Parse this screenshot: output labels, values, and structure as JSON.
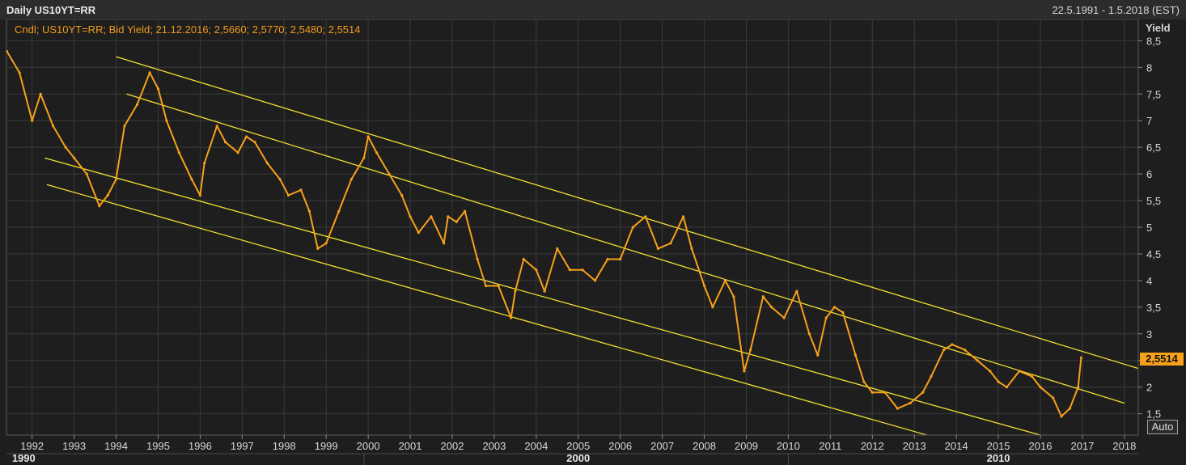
{
  "header": {
    "title": "Daily US10YT=RR",
    "date_range": "22.5.1991 - 1.5.2018 (EST)"
  },
  "legend": {
    "text": "Cndl; US10YT=RR; Bid Yield; 21.12.2016; 2,5660; 2,5770; 2,5480; 2,5514"
  },
  "controls": {
    "auto_label": "Auto"
  },
  "last_value_label": "2,5514",
  "colors": {
    "background": "#1e1e1e",
    "series": "#f7a11a",
    "channel": "#f0e030",
    "grid": "#3a3a3a"
  },
  "chart_data": {
    "type": "line",
    "title": "Daily US10YT=RR",
    "ylabel": "Yield",
    "xlim": [
      1991.39,
      2018.33
    ],
    "ylim": [
      1.1,
      8.9
    ],
    "grid": true,
    "y_ticks": [
      "8,5",
      "8",
      "7,5",
      "7",
      "6,5",
      "6",
      "5,5",
      "5",
      "4,5",
      "4",
      "3,5",
      "3",
      "2,5",
      "2",
      "1,5"
    ],
    "x_ticks": [
      "1992",
      "1993",
      "1994",
      "1995",
      "1996",
      "1997",
      "1998",
      "1999",
      "2000",
      "2001",
      "2002",
      "2003",
      "2004",
      "2005",
      "2006",
      "2007",
      "2008",
      "2009",
      "2010",
      "2011",
      "2012",
      "2013",
      "2014",
      "2015",
      "2016",
      "2017",
      "2018"
    ],
    "decade_labels": [
      "1990",
      "2000",
      "2010"
    ],
    "last_value": 2.5514,
    "series": [
      {
        "name": "US10YT=RR",
        "x": [
          1991.4,
          1991.7,
          1992.0,
          1992.2,
          1992.5,
          1992.8,
          1993.0,
          1993.3,
          1993.6,
          1993.8,
          1994.0,
          1994.2,
          1994.5,
          1994.8,
          1995.0,
          1995.2,
          1995.5,
          1995.8,
          1996.0,
          1996.1,
          1996.4,
          1996.6,
          1996.9,
          1997.1,
          1997.3,
          1997.6,
          1997.9,
          1998.1,
          1998.4,
          1998.6,
          1998.8,
          1999.0,
          1999.3,
          1999.6,
          1999.9,
          2000.0,
          2000.2,
          2000.5,
          2000.8,
          2001.0,
          2001.2,
          2001.5,
          2001.8,
          2001.9,
          2002.1,
          2002.3,
          2002.6,
          2002.8,
          2003.1,
          2003.4,
          2003.5,
          2003.7,
          2004.0,
          2004.2,
          2004.5,
          2004.8,
          2005.1,
          2005.4,
          2005.7,
          2006.0,
          2006.3,
          2006.6,
          2006.9,
          2007.2,
          2007.5,
          2007.7,
          2008.0,
          2008.2,
          2008.5,
          2008.7,
          2008.95,
          2009.1,
          2009.4,
          2009.6,
          2009.9,
          2010.2,
          2010.5,
          2010.7,
          2010.9,
          2011.1,
          2011.3,
          2011.6,
          2011.8,
          2012.0,
          2012.3,
          2012.6,
          2012.9,
          2013.2,
          2013.4,
          2013.7,
          2013.9,
          2014.2,
          2014.5,
          2014.8,
          2015.0,
          2015.2,
          2015.5,
          2015.8,
          2016.0,
          2016.3,
          2016.5,
          2016.7,
          2016.9,
          2016.97
        ],
        "values": [
          8.3,
          7.9,
          7.0,
          7.5,
          6.9,
          6.5,
          6.3,
          6.0,
          5.4,
          5.6,
          5.9,
          6.9,
          7.3,
          7.9,
          7.6,
          7.0,
          6.4,
          5.9,
          5.6,
          6.2,
          6.9,
          6.6,
          6.4,
          6.7,
          6.6,
          6.2,
          5.9,
          5.6,
          5.7,
          5.3,
          4.6,
          4.7,
          5.3,
          5.9,
          6.3,
          6.7,
          6.4,
          6.0,
          5.6,
          5.2,
          4.9,
          5.2,
          4.7,
          5.2,
          5.1,
          5.3,
          4.4,
          3.9,
          3.9,
          3.3,
          3.8,
          4.4,
          4.2,
          3.8,
          4.6,
          4.2,
          4.2,
          4.0,
          4.4,
          4.4,
          5.0,
          5.2,
          4.6,
          4.7,
          5.2,
          4.6,
          3.9,
          3.5,
          4.0,
          3.7,
          2.3,
          2.7,
          3.7,
          3.5,
          3.3,
          3.8,
          3.0,
          2.6,
          3.3,
          3.5,
          3.4,
          2.6,
          2.1,
          1.9,
          1.9,
          1.6,
          1.7,
          1.9,
          2.2,
          2.7,
          2.8,
          2.7,
          2.5,
          2.3,
          2.1,
          2.0,
          2.3,
          2.2,
          2.0,
          1.8,
          1.45,
          1.6,
          2.0,
          2.55
        ]
      }
    ],
    "channel_lines": [
      {
        "x": [
          1994.0,
          2018.33
        ],
        "y": [
          8.2,
          2.35
        ]
      },
      {
        "x": [
          1994.25,
          2018.0
        ],
        "y": [
          7.5,
          1.7
        ]
      },
      {
        "x": [
          1992.3,
          2016.0
        ],
        "y": [
          6.3,
          1.1
        ]
      },
      {
        "x": [
          1992.35,
          2013.3
        ],
        "y": [
          5.8,
          1.1
        ]
      }
    ]
  }
}
